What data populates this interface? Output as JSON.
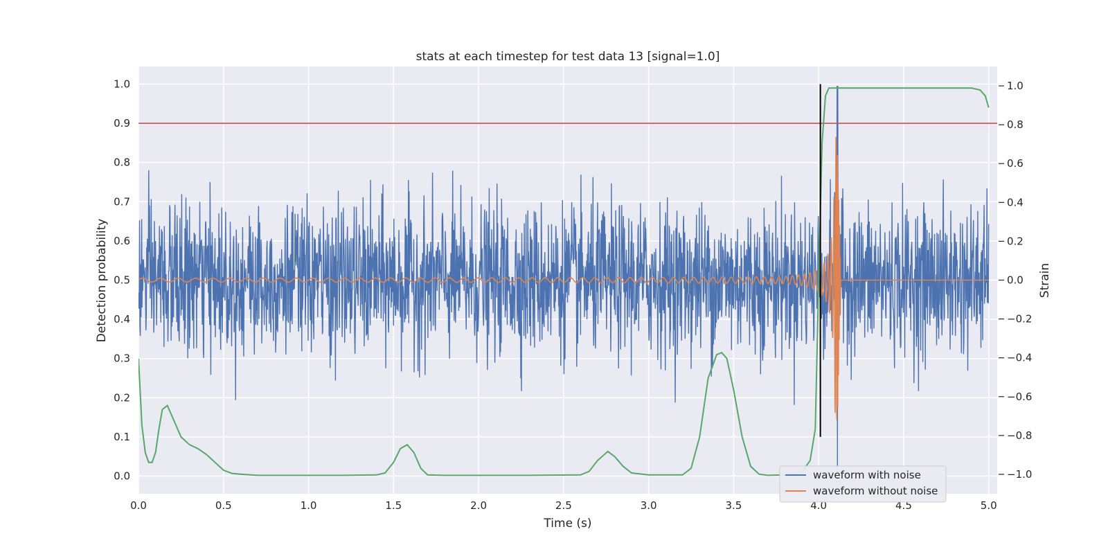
{
  "chart_data": {
    "type": "line",
    "title": "stats at each timestep for test data 13 [signal=1.0]",
    "xlabel": "Time (s)",
    "ylabel_left": "Detection probability",
    "ylabel_right": "Strain",
    "xlim": [
      0.0,
      5.05
    ],
    "ylim_left": [
      -0.045,
      1.045
    ],
    "ylim_right": [
      -1.1,
      1.1
    ],
    "x_ticks": [
      "0.0",
      "0.5",
      "1.0",
      "1.5",
      "2.0",
      "2.5",
      "3.0",
      "3.5",
      "4.0",
      "4.5",
      "5.0"
    ],
    "y_ticks_left": [
      "0.0",
      "0.1",
      "0.2",
      "0.3",
      "0.4",
      "0.5",
      "0.6",
      "0.7",
      "0.8",
      "0.9",
      "1.0"
    ],
    "y_ticks_right": [
      "−1.0",
      "−0.8",
      "−0.6",
      "−0.4",
      "−0.2",
      "0.0",
      "0.2",
      "0.4",
      "0.6",
      "0.8",
      "1.0"
    ],
    "grid": true,
    "legend_position": "lower-right",
    "threshold": {
      "axis": "left",
      "y": 0.9,
      "color": "#c44e52"
    },
    "marker_line": {
      "x": 4.01,
      "y_range": [
        0.1,
        1.0
      ],
      "color": "#000000"
    },
    "background_color": "#eaeaf2",
    "series": [
      {
        "name": "waveform with noise",
        "axis": "right",
        "color": "#4c72b0",
        "description_points": "noisy strain ~ white noise, std ≈ 0.19, range ≈ [-1.0, 1.0], spans x 0.0–5.0, spikes to +1.0 and -1.0 near x ≈ 4.11",
        "noise_std": 0.19,
        "x_range": [
          0.0,
          5.0
        ]
      },
      {
        "name": "waveform without noise",
        "axis": "right",
        "color": "#dd8452",
        "description_points": "chirp: amplitude ≈ 0.01 at x=0 growing to ≈ 0.75 at merger x ≈ 4.11, frequency increasing, then 0 after x ≈ 4.13",
        "merger_x": 4.11,
        "amplitude_start": 0.01,
        "amplitude_peak": 0.75
      },
      {
        "name": "",
        "axis": "left",
        "color": "#55a868",
        "x": [
          0.0,
          0.02,
          0.04,
          0.06,
          0.08,
          0.1,
          0.12,
          0.14,
          0.17,
          0.2,
          0.25,
          0.3,
          0.35,
          0.4,
          0.45,
          0.5,
          0.55,
          0.6,
          0.7,
          0.8,
          1.0,
          1.2,
          1.4,
          1.45,
          1.5,
          1.54,
          1.58,
          1.62,
          1.66,
          1.7,
          1.8,
          2.0,
          2.3,
          2.6,
          2.65,
          2.7,
          2.76,
          2.8,
          2.85,
          2.9,
          3.0,
          3.2,
          3.25,
          3.3,
          3.35,
          3.4,
          3.43,
          3.46,
          3.5,
          3.55,
          3.6,
          3.65,
          3.7,
          3.8,
          3.9,
          3.95,
          3.98,
          4.0,
          4.02,
          4.04,
          4.06,
          4.1,
          4.5,
          4.9,
          4.95,
          4.98,
          5.0
        ],
        "values": [
          0.3,
          0.13,
          0.06,
          0.035,
          0.035,
          0.06,
          0.12,
          0.17,
          0.18,
          0.15,
          0.1,
          0.08,
          0.07,
          0.055,
          0.035,
          0.015,
          0.007,
          0.005,
          0.002,
          0.002,
          0.002,
          0.002,
          0.003,
          0.008,
          0.035,
          0.07,
          0.08,
          0.06,
          0.02,
          0.003,
          0.002,
          0.002,
          0.002,
          0.003,
          0.012,
          0.04,
          0.063,
          0.05,
          0.025,
          0.008,
          0.003,
          0.003,
          0.02,
          0.1,
          0.25,
          0.31,
          0.315,
          0.3,
          0.22,
          0.1,
          0.025,
          0.005,
          0.002,
          0.003,
          0.01,
          0.04,
          0.12,
          0.5,
          0.85,
          0.97,
          0.99,
          0.99,
          0.99,
          0.99,
          0.985,
          0.97,
          0.94
        ]
      }
    ]
  }
}
